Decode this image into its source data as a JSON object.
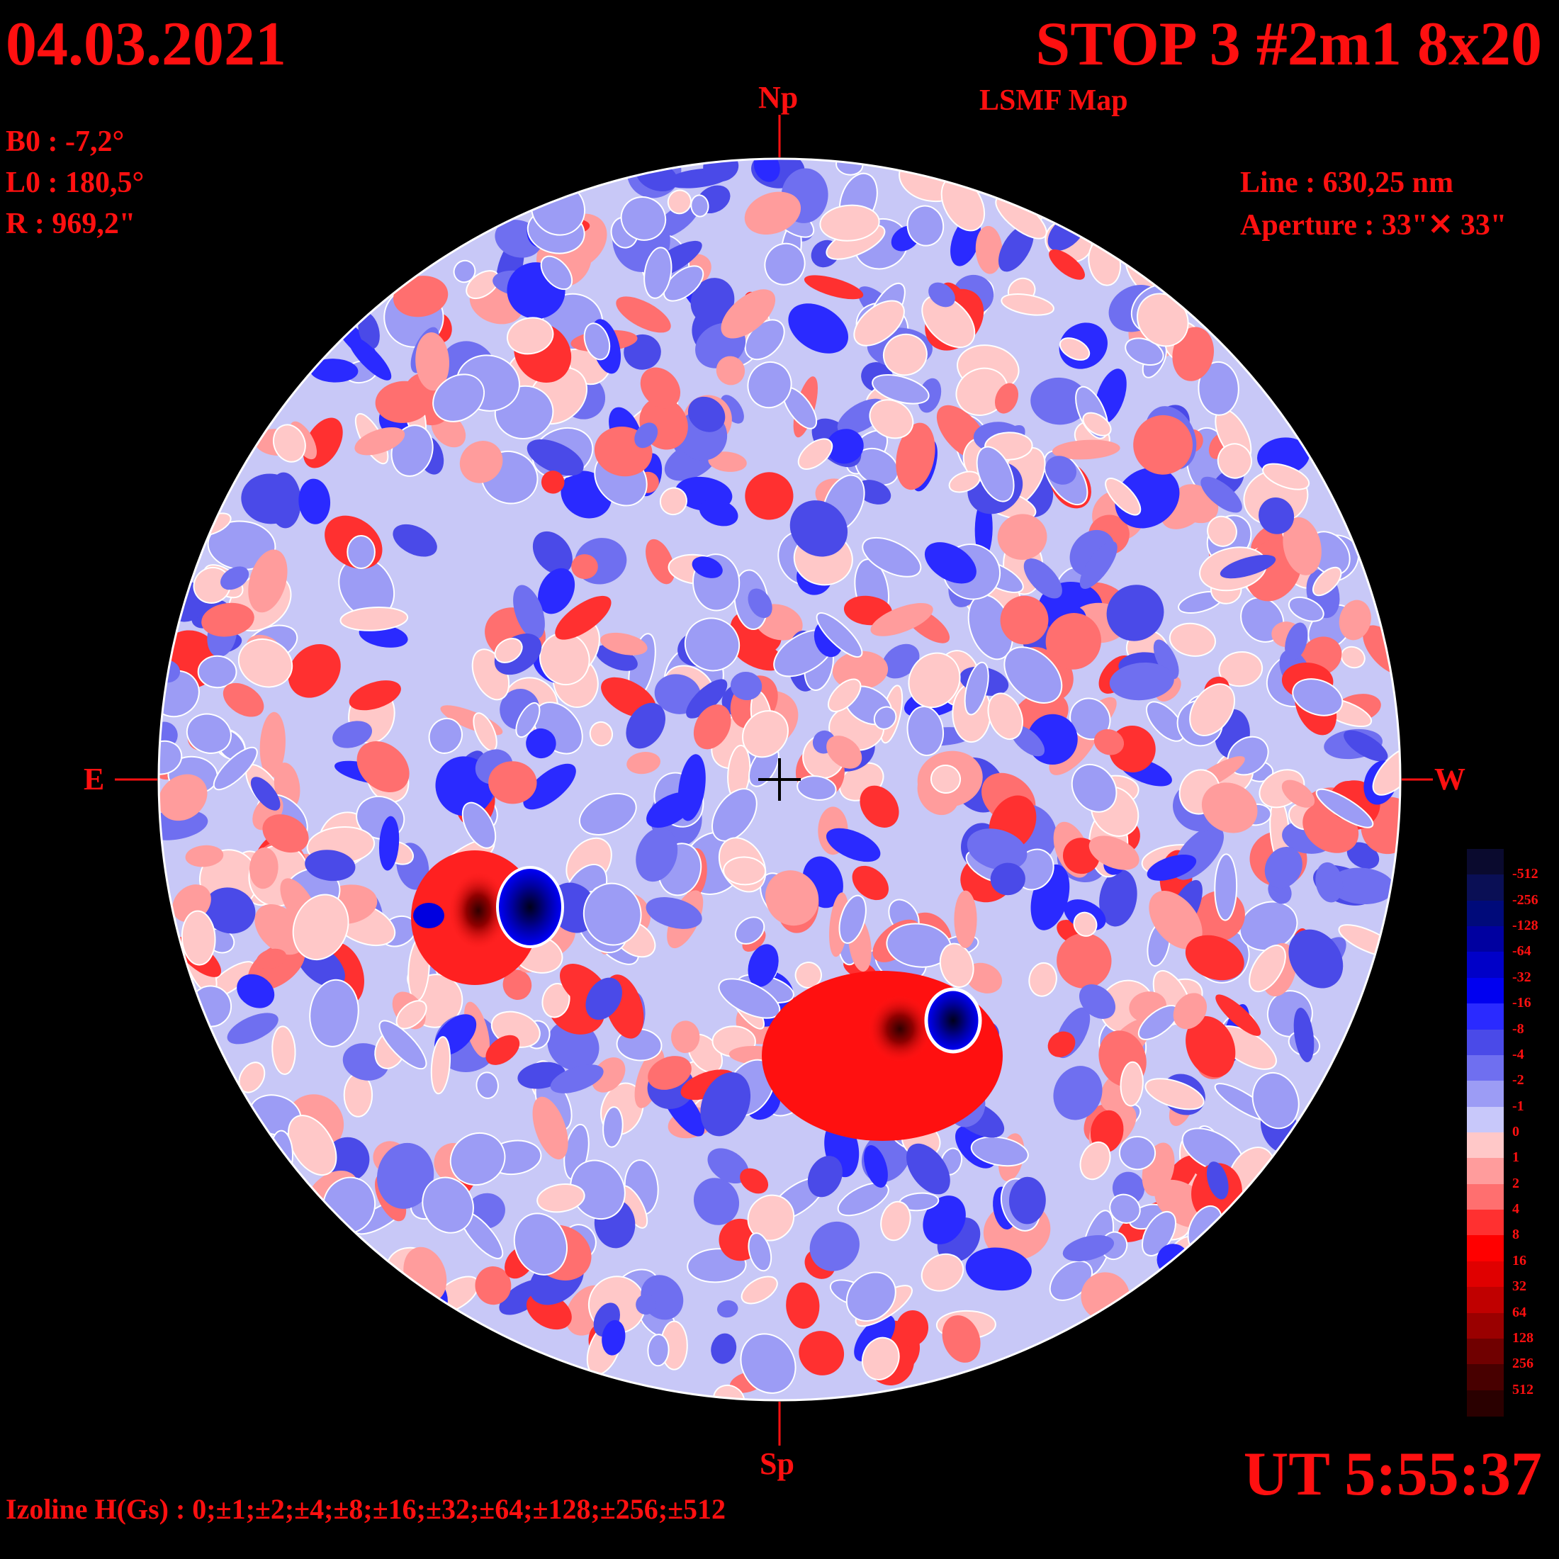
{
  "header": {
    "date": "04.03.2021",
    "title": "STOP 3 #2m1 8x20",
    "subtitle": "LSMF  Map"
  },
  "parameters": {
    "b0": "B0 : -7,2°",
    "l0": "L0 : 180,5°",
    "radius": "R  : 969,2\""
  },
  "instrument": {
    "line": "Line :  630,25 nm",
    "aperture": "Aperture : 33\"✕ 33\""
  },
  "directions": {
    "north": "Np",
    "south": "Sp",
    "east": "E",
    "west": "W"
  },
  "time": "UT 5:55:37",
  "izoline": "Izoline H(Gs) : 0;±1;±2;±4;±8;±16;±32;±64;±128;±256;±512",
  "colorbar": {
    "labels": [
      "-512",
      "-256",
      "-128",
      "-64",
      "-32",
      "-16",
      "-8",
      "-4",
      "-2",
      "-1",
      "0",
      "1",
      "2",
      "4",
      "8",
      "16",
      "32",
      "64",
      "128",
      "256",
      "512"
    ],
    "colors": [
      "#0a0a2e",
      "#0a0f55",
      "#000a7a",
      "#0000a0",
      "#0000c8",
      "#0000f0",
      "#2a2aff",
      "#4a4ae8",
      "#6f6ff0",
      "#9c9cf5",
      "#c8c8fa",
      "#ffc8c8",
      "#ff9c9c",
      "#ff6f6f",
      "#ff3030",
      "#ff0000",
      "#e00000",
      "#c00000",
      "#9a0000",
      "#700000",
      "#480000",
      "#2a0000"
    ]
  },
  "active_regions": [
    {
      "positive": "strong",
      "negative": "strong",
      "location": "southeast"
    },
    {
      "positive": "strong",
      "negative": "strong",
      "location": "southwest"
    }
  ]
}
